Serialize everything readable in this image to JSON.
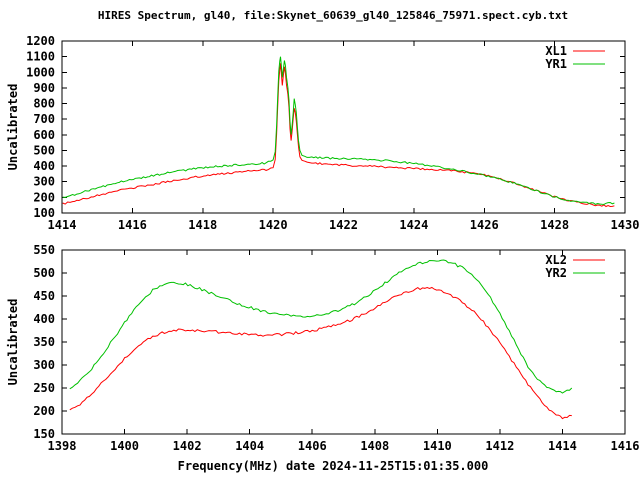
{
  "title": "HIRES Spectrum, gl40, file:Skynet_60639_gl40_125846_75971.spect.cyb.txt",
  "background_color": "#ffffff",
  "axis_color": "#000000",
  "chart_data": [
    {
      "type": "line",
      "ylabel": "Uncalibrated",
      "xlabel": "",
      "xlim": [
        1414,
        1430
      ],
      "ylim": [
        100,
        1200
      ],
      "xticks": [
        1414,
        1416,
        1418,
        1420,
        1422,
        1424,
        1426,
        1428,
        1430
      ],
      "yticks": [
        100,
        200,
        300,
        400,
        500,
        600,
        700,
        800,
        900,
        1000,
        1100,
        1200
      ],
      "grid": false,
      "legend_position": "top-right-inside",
      "series": [
        {
          "name": "XL1",
          "color": "#ff0000",
          "points": [
            [
              1414.02,
              158
            ],
            [
              1414.3,
              172
            ],
            [
              1414.6,
              190
            ],
            [
              1415.0,
              212
            ],
            [
              1415.4,
              232
            ],
            [
              1415.8,
              252
            ],
            [
              1416.2,
              268
            ],
            [
              1416.6,
              284
            ],
            [
              1417.0,
              300
            ],
            [
              1417.4,
              316
            ],
            [
              1417.8,
              330
            ],
            [
              1418.2,
              342
            ],
            [
              1418.6,
              352
            ],
            [
              1419.0,
              362
            ],
            [
              1419.4,
              370
            ],
            [
              1419.8,
              378
            ],
            [
              1420.0,
              390
            ],
            [
              1420.06,
              440
            ],
            [
              1420.1,
              600
            ],
            [
              1420.13,
              780
            ],
            [
              1420.16,
              950
            ],
            [
              1420.19,
              1020
            ],
            [
              1420.21,
              1055
            ],
            [
              1420.23,
              1000
            ],
            [
              1420.26,
              920
            ],
            [
              1420.29,
              975
            ],
            [
              1420.32,
              1030
            ],
            [
              1420.35,
              990
            ],
            [
              1420.38,
              920
            ],
            [
              1420.42,
              860
            ],
            [
              1420.45,
              780
            ],
            [
              1420.48,
              640
            ],
            [
              1420.51,
              565
            ],
            [
              1420.54,
              620
            ],
            [
              1420.57,
              700
            ],
            [
              1420.6,
              775
            ],
            [
              1420.63,
              745
            ],
            [
              1420.66,
              690
            ],
            [
              1420.69,
              600
            ],
            [
              1420.72,
              520
            ],
            [
              1420.76,
              465
            ],
            [
              1420.82,
              438
            ],
            [
              1420.9,
              428
            ],
            [
              1421.1,
              420
            ],
            [
              1421.5,
              413
            ],
            [
              1422.0,
              406
            ],
            [
              1422.5,
              401
            ],
            [
              1423.0,
              396
            ],
            [
              1423.5,
              390
            ],
            [
              1424.0,
              384
            ],
            [
              1424.5,
              378
            ],
            [
              1425.0,
              371
            ],
            [
              1425.5,
              360
            ],
            [
              1426.0,
              344
            ],
            [
              1426.4,
              322
            ],
            [
              1426.8,
              296
            ],
            [
              1427.2,
              266
            ],
            [
              1427.6,
              234
            ],
            [
              1428.0,
              204
            ],
            [
              1428.4,
              180
            ],
            [
              1428.8,
              162
            ],
            [
              1429.1,
              152
            ],
            [
              1429.4,
              147
            ],
            [
              1429.7,
              146
            ]
          ]
        },
        {
          "name": "YR1",
          "color": "#00c000",
          "points": [
            [
              1414.02,
              198
            ],
            [
              1414.3,
              215
            ],
            [
              1414.6,
              235
            ],
            [
              1415.0,
              260
            ],
            [
              1415.4,
              283
            ],
            [
              1415.8,
              305
            ],
            [
              1416.2,
              323
            ],
            [
              1416.6,
              340
            ],
            [
              1417.0,
              356
            ],
            [
              1417.4,
              371
            ],
            [
              1417.8,
              384
            ],
            [
              1418.2,
              394
            ],
            [
              1418.6,
              401
            ],
            [
              1419.0,
              408
            ],
            [
              1419.4,
              413
            ],
            [
              1419.8,
              420
            ],
            [
              1420.0,
              435
            ],
            [
              1420.06,
              490
            ],
            [
              1420.1,
              660
            ],
            [
              1420.13,
              840
            ],
            [
              1420.16,
              1010
            ],
            [
              1420.19,
              1070
            ],
            [
              1420.21,
              1105
            ],
            [
              1420.23,
              1050
            ],
            [
              1420.26,
              965
            ],
            [
              1420.29,
              1020
            ],
            [
              1420.32,
              1080
            ],
            [
              1420.35,
              1040
            ],
            [
              1420.38,
              965
            ],
            [
              1420.42,
              905
            ],
            [
              1420.45,
              825
            ],
            [
              1420.48,
              685
            ],
            [
              1420.51,
              605
            ],
            [
              1420.54,
              660
            ],
            [
              1420.57,
              745
            ],
            [
              1420.6,
              828
            ],
            [
              1420.63,
              795
            ],
            [
              1420.66,
              738
            ],
            [
              1420.69,
              645
            ],
            [
              1420.72,
              560
            ],
            [
              1420.76,
              505
            ],
            [
              1420.82,
              472
            ],
            [
              1420.9,
              460
            ],
            [
              1421.1,
              455
            ],
            [
              1421.5,
              452
            ],
            [
              1422.0,
              448
            ],
            [
              1422.5,
              444
            ],
            [
              1423.0,
              438
            ],
            [
              1423.5,
              429
            ],
            [
              1424.0,
              417
            ],
            [
              1424.5,
              402
            ],
            [
              1425.0,
              384
            ],
            [
              1425.5,
              363
            ],
            [
              1426.0,
              340
            ],
            [
              1426.4,
              318
            ],
            [
              1426.8,
              293
            ],
            [
              1427.2,
              264
            ],
            [
              1427.6,
              233
            ],
            [
              1428.0,
              203
            ],
            [
              1428.4,
              180
            ],
            [
              1428.8,
              165
            ],
            [
              1429.1,
              160
            ],
            [
              1429.4,
              160
            ],
            [
              1429.7,
              164
            ]
          ]
        }
      ]
    },
    {
      "type": "line",
      "ylabel": "Uncalibrated",
      "xlabel": "Frequency(MHz) date 2024-11-25T15:01:35.000",
      "xlim": [
        1398,
        1416
      ],
      "ylim": [
        150,
        550
      ],
      "xticks": [
        1398,
        1400,
        1402,
        1404,
        1406,
        1408,
        1410,
        1412,
        1414,
        1416
      ],
      "yticks": [
        150,
        200,
        250,
        300,
        350,
        400,
        450,
        500,
        550
      ],
      "grid": false,
      "legend_position": "top-right-inside",
      "series": [
        {
          "name": "XL2",
          "color": "#ff0000",
          "points": [
            [
              1398.25,
              200
            ],
            [
              1398.5,
              211
            ],
            [
              1398.8,
              228
            ],
            [
              1399.1,
              248
            ],
            [
              1399.4,
              270
            ],
            [
              1399.7,
              292
            ],
            [
              1400.0,
              315
            ],
            [
              1400.3,
              334
            ],
            [
              1400.6,
              350
            ],
            [
              1400.9,
              362
            ],
            [
              1401.2,
              370
            ],
            [
              1401.5,
              374
            ],
            [
              1401.8,
              376
            ],
            [
              1402.1,
              376
            ],
            [
              1402.4,
              374
            ],
            [
              1402.7,
              373
            ],
            [
              1403.0,
              372
            ],
            [
              1403.3,
              371
            ],
            [
              1403.6,
              369
            ],
            [
              1403.9,
              367
            ],
            [
              1404.2,
              366
            ],
            [
              1404.5,
              365
            ],
            [
              1404.8,
              366
            ],
            [
              1405.1,
              367
            ],
            [
              1405.4,
              369
            ],
            [
              1405.7,
              372
            ],
            [
              1406.0,
              375
            ],
            [
              1406.3,
              379
            ],
            [
              1406.6,
              384
            ],
            [
              1406.9,
              390
            ],
            [
              1407.2,
              397
            ],
            [
              1407.5,
              406
            ],
            [
              1407.8,
              416
            ],
            [
              1408.1,
              427
            ],
            [
              1408.4,
              439
            ],
            [
              1408.7,
              450
            ],
            [
              1409.0,
              459
            ],
            [
              1409.3,
              465
            ],
            [
              1409.6,
              468
            ],
            [
              1409.9,
              466
            ],
            [
              1410.2,
              459
            ],
            [
              1410.5,
              449
            ],
            [
              1410.8,
              436
            ],
            [
              1411.1,
              420
            ],
            [
              1411.4,
              400
            ],
            [
              1411.7,
              376
            ],
            [
              1412.0,
              348
            ],
            [
              1412.3,
              318
            ],
            [
              1412.6,
              288
            ],
            [
              1412.9,
              258
            ],
            [
              1413.2,
              231
            ],
            [
              1413.5,
              208
            ],
            [
              1413.8,
              192
            ],
            [
              1414.0,
              186
            ],
            [
              1414.15,
              187
            ],
            [
              1414.3,
              190
            ]
          ]
        },
        {
          "name": "YR2",
          "color": "#00c000",
          "points": [
            [
              1398.25,
              247
            ],
            [
              1398.5,
              260
            ],
            [
              1398.8,
              280
            ],
            [
              1399.1,
              305
            ],
            [
              1399.4,
              333
            ],
            [
              1399.7,
              362
            ],
            [
              1400.0,
              392
            ],
            [
              1400.3,
              420
            ],
            [
              1400.6,
              444
            ],
            [
              1400.9,
              462
            ],
            [
              1401.2,
              474
            ],
            [
              1401.5,
              479
            ],
            [
              1401.8,
              478
            ],
            [
              1402.1,
              473
            ],
            [
              1402.4,
              466
            ],
            [
              1402.7,
              458
            ],
            [
              1403.0,
              450
            ],
            [
              1403.3,
              442
            ],
            [
              1403.6,
              434
            ],
            [
              1403.9,
              427
            ],
            [
              1404.2,
              421
            ],
            [
              1404.5,
              416
            ],
            [
              1404.8,
              412
            ],
            [
              1405.1,
              409
            ],
            [
              1405.4,
              407
            ],
            [
              1405.7,
              406
            ],
            [
              1406.0,
              407
            ],
            [
              1406.3,
              410
            ],
            [
              1406.6,
              414
            ],
            [
              1406.9,
              420
            ],
            [
              1407.2,
              428
            ],
            [
              1407.5,
              439
            ],
            [
              1407.8,
              452
            ],
            [
              1408.1,
              466
            ],
            [
              1408.4,
              482
            ],
            [
              1408.7,
              497
            ],
            [
              1409.0,
              509
            ],
            [
              1409.3,
              518
            ],
            [
              1409.6,
              524
            ],
            [
              1409.9,
              527
            ],
            [
              1410.2,
              526
            ],
            [
              1410.5,
              521
            ],
            [
              1410.8,
              511
            ],
            [
              1411.1,
              496
            ],
            [
              1411.4,
              474
            ],
            [
              1411.7,
              446
            ],
            [
              1412.0,
              412
            ],
            [
              1412.3,
              374
            ],
            [
              1412.6,
              334
            ],
            [
              1412.9,
              296
            ],
            [
              1413.2,
              269
            ],
            [
              1413.5,
              250
            ],
            [
              1413.8,
              241
            ],
            [
              1414.0,
              240
            ],
            [
              1414.15,
              244
            ],
            [
              1414.3,
              250
            ]
          ]
        }
      ]
    }
  ]
}
